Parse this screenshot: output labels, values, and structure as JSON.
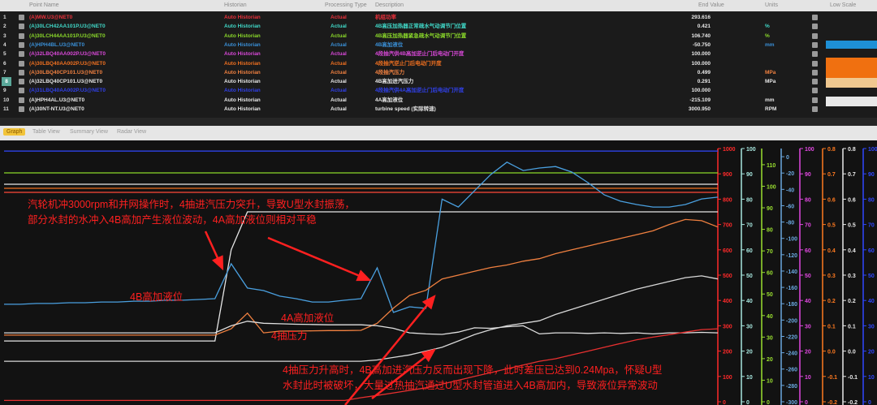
{
  "table": {
    "headers": {
      "point_name": "Point Name",
      "historian": "Historian",
      "processing_type": "Processing Type",
      "description": "Description",
      "end_value": "End Value",
      "units": "Units",
      "low_scale": "Low Scale"
    },
    "rows": [
      {
        "index": "1",
        "name": "(A)MW.U3@NET0",
        "historian": "Auto Historian",
        "type": "Actual",
        "description": "机组功率",
        "end_value": "293.616",
        "units": "",
        "color": "#e8303a"
      },
      {
        "index": "2",
        "name": "(A)30LCH42AA101P.U3@NET0",
        "historian": "Auto Historian",
        "type": "Actual",
        "description": "4B高压加热器正常疏水气动调节门位置",
        "end_value": "0.421",
        "units": "%",
        "color": "#40d8c8"
      },
      {
        "index": "3",
        "name": "(A)30LCH44AA101P.U3@NET0",
        "historian": "Auto Historian",
        "type": "Actual",
        "description": "4B高压加热器紧急疏水气动调节门位置",
        "end_value": "106.740",
        "units": "%",
        "color": "#8ad82a"
      },
      {
        "index": "4",
        "name": "(A)HPH4BL.U3@NET0",
        "historian": "Auto Historian",
        "type": "Actual",
        "description": "4B高加液位",
        "end_value": "-50.750",
        "units": "mm",
        "color": "#3a90d8"
      },
      {
        "index": "5",
        "name": "(A)32LBQ40AA002P.U3@NET0",
        "historian": "Auto Historian",
        "type": "Actual",
        "description": "4段抽汽供4B高加逆止门后电动门开度",
        "end_value": "100.000",
        "units": "",
        "color": "#d848d8"
      },
      {
        "index": "6",
        "name": "(A)30LBQ40AA002P.U3@NET0",
        "historian": "Auto Historian",
        "type": "Actual",
        "description": "4段抽汽逆止门后电动门开度",
        "end_value": "100.000",
        "units": "",
        "color": "#f07020"
      },
      {
        "index": "7",
        "name": "(A)30LBQ40CP101.U3@NET0",
        "historian": "Auto Historian",
        "type": "Actual",
        "description": "4段抽汽压力",
        "end_value": "0.499",
        "units": "MPa",
        "color": "#f08040"
      },
      {
        "index": "8",
        "name": "(A)32LBQ40CP101.U3@NET0",
        "historian": "Auto Historian",
        "type": "Actual",
        "description": "4B高加进汽压力",
        "end_value": "0.291",
        "units": "MPa",
        "color": "#e6e6e6"
      },
      {
        "index": "9",
        "name": "(A)31LBQ40AA002P.U3@NET0",
        "historian": "Auto Historian",
        "type": "Actual",
        "description": "4段抽汽供4A高加逆止门后电动门开度",
        "end_value": "100.000",
        "units": "",
        "color": "#3040e8"
      },
      {
        "index": "10",
        "name": "(A)HPH4AL.U3@NET0",
        "historian": "Auto Historian",
        "type": "Actual",
        "description": "4A高加液位",
        "end_value": "-215.109",
        "units": "mm",
        "color": "#e6e6e6"
      },
      {
        "index": "11",
        "name": "(A)30NT-NT.U3@NET0",
        "historian": "Auto Historian",
        "type": "Actual",
        "description": "turbine speed (实际转速)",
        "end_value": "3000.950",
        "units": "RPM",
        "color": "#e6e6e6"
      }
    ],
    "selected_row": "8",
    "low_scale_colors": {
      "row4": "#1e90d6",
      "row5_6": "#f07010",
      "row7": "#f0c890",
      "row10": "#e8e8e8"
    }
  },
  "tabs": [
    {
      "label": "Graph",
      "active": true
    },
    {
      "label": "Table View",
      "active": false
    },
    {
      "label": "Summary View",
      "active": false
    },
    {
      "label": "Radar View",
      "active": false
    }
  ],
  "annotations": {
    "top_line1": "汽轮机冲3000rpm和并网操作时，4抽进汽压力突升，导致U型水封振荡，",
    "top_line2": "部分水封的水冲入4B高加产生液位波动，4A高加液位则相对平稳",
    "bottom_line1": "4抽压力升高时，4B高加进汽压力反而出现下降，此时差压已达到0.24Mpa，怀疑U型",
    "bottom_line2": "水封此时被破坏，大量过热抽汽通过U型水封管道进入4B高加内，导致液位异常波动",
    "label_4b": "4B高加液位",
    "label_4a": "4A高加液位",
    "label_4p": "4抽压力",
    "color": "#ff2020"
  },
  "chart_data": {
    "type": "line",
    "grid": false,
    "y_reference_axis": "red axis 0–1000",
    "axes": [
      {
        "color": "#ff2a2a",
        "min": 0,
        "max": 1000,
        "step": 100,
        "decimals": 0
      },
      {
        "color": "#a8e8e0",
        "min": 0,
        "max": 100,
        "step": 10,
        "decimals": 0
      },
      {
        "color": "#9ae030",
        "min": 0,
        "max": 117.5,
        "step": 10,
        "decimals": 0
      },
      {
        "color": "#6aa8e0",
        "min": -300,
        "max": 10,
        "step": 20,
        "decimals": 0
      },
      {
        "color": "#e048e0",
        "min": 0,
        "max": 100,
        "step": 10,
        "decimals": 0
      },
      {
        "color": "#ff7a20",
        "min": -0.2,
        "max": 0.8,
        "step": 0.1,
        "decimals": 1
      },
      {
        "color": "#e8e8e8",
        "min": -0.2,
        "max": 0.8,
        "step": 0.1,
        "decimals": 1
      },
      {
        "color": "#3048ff",
        "min": 0,
        "max": 100,
        "step": 10,
        "decimals": 0
      }
    ],
    "series": [
      {
        "color": "#3048ff",
        "values": [
          990,
          990,
          990,
          990,
          990,
          990,
          990,
          990,
          990,
          990,
          990,
          990,
          990,
          990,
          990,
          990,
          990,
          990,
          990,
          990,
          990,
          990,
          990,
          990,
          990,
          990,
          990,
          990,
          990,
          990,
          990,
          990,
          990,
          990,
          990,
          990,
          990,
          990,
          990,
          990,
          990,
          990,
          990,
          990,
          990
        ]
      },
      {
        "color": "#8ad82a",
        "values": [
          904,
          904,
          904,
          904,
          904,
          904,
          904,
          904,
          904,
          904,
          904,
          904,
          904,
          904,
          904,
          904,
          904,
          904,
          904,
          904,
          904,
          904,
          904,
          904,
          904,
          904,
          904,
          904,
          904,
          904,
          904,
          904,
          904,
          904,
          904,
          904,
          904,
          904,
          904,
          904,
          904,
          904,
          904,
          904,
          904
        ]
      },
      {
        "color": "#e8e8e8",
        "values": [
          859,
          859,
          859,
          859,
          859,
          859,
          859,
          859,
          859,
          859,
          859,
          859,
          859,
          859,
          859,
          859,
          859,
          859,
          859,
          859,
          859,
          859,
          859,
          859,
          859,
          859,
          859,
          859,
          859,
          859,
          859,
          859,
          859,
          859,
          859,
          859,
          859,
          859,
          859,
          859,
          859,
          859,
          859,
          859,
          859
        ]
      },
      {
        "color": "#f07020",
        "values": [
          843,
          843,
          843,
          843,
          843,
          843,
          843,
          843,
          843,
          843,
          843,
          843,
          843,
          843,
          843,
          843,
          843,
          843,
          843,
          843,
          843,
          843,
          843,
          843,
          843,
          843,
          843,
          843,
          843,
          843,
          843,
          843,
          843,
          843,
          843,
          843,
          843,
          843,
          843,
          843,
          843,
          843,
          843,
          843,
          843
        ]
      },
      {
        "color": "#ff4a3a",
        "values": [
          827,
          827,
          827,
          827,
          827,
          827,
          827,
          827,
          827,
          827,
          827,
          827,
          827,
          827,
          827,
          827,
          827,
          827,
          827,
          827,
          827,
          827,
          827,
          827,
          827,
          827,
          827,
          827,
          827,
          827,
          827,
          827,
          827,
          827,
          827,
          827,
          827,
          827,
          827,
          827,
          827,
          827,
          827,
          827,
          827
        ]
      },
      {
        "color": "#e6e6e6",
        "values": [
          240,
          240,
          240,
          240,
          240,
          240,
          240,
          240,
          240,
          240,
          240,
          240,
          240,
          240,
          600,
          750,
          750,
          750,
          750,
          750,
          750,
          750,
          750,
          750,
          750,
          750,
          750,
          750,
          750,
          750,
          750,
          750,
          750,
          750,
          750,
          750,
          750,
          750,
          750,
          750,
          750,
          750,
          750,
          750,
          750
        ]
      },
      {
        "color": "#4aa0e0",
        "values": [
          385,
          385,
          388,
          388,
          391,
          391,
          394,
          394,
          397,
          397,
          401,
          401,
          404,
          407,
          545,
          449,
          439,
          417,
          407,
          394,
          394,
          401,
          407,
          529,
          353,
          375,
          369,
          800,
          769,
          833,
          897,
          946,
          913,
          923,
          929,
          907,
          865,
          817,
          792,
          779,
          769,
          769,
          779,
          801,
          808
        ]
      },
      {
        "color": "#f08040",
        "values": [
          263,
          263,
          263,
          263,
          263,
          263,
          263,
          263,
          263,
          263,
          263,
          263,
          263,
          263,
          288,
          350,
          272,
          279,
          279,
          280,
          281,
          281,
          282,
          310,
          370,
          420,
          440,
          485,
          500,
          515,
          530,
          540,
          555,
          565,
          585,
          600,
          615,
          630,
          645,
          660,
          675,
          700,
          720,
          715,
          690
        ]
      },
      {
        "color": "#e0e0e0",
        "values": [
          272,
          272,
          272,
          272,
          272,
          272,
          272,
          272,
          272,
          272,
          272,
          272,
          272,
          272,
          300,
          318,
          310,
          308,
          306,
          305,
          304,
          304,
          304,
          300,
          290,
          272,
          268,
          266,
          275,
          292,
          290,
          296,
          300,
          268,
          272,
          272,
          270,
          272,
          270,
          272,
          268,
          272,
          272,
          274,
          272
        ]
      },
      {
        "color": "#d8d8d8",
        "values": [
          160,
          160,
          160,
          160,
          160,
          160,
          160,
          160,
          160,
          160,
          160,
          160,
          160,
          160,
          160,
          160,
          160,
          160,
          160,
          160,
          160,
          160,
          160,
          165,
          175,
          185,
          200,
          215,
          240,
          265,
          285,
          300,
          310,
          320,
          345,
          365,
          385,
          405,
          425,
          445,
          460,
          475,
          490,
          497,
          485
        ]
      },
      {
        "color": "#e83030",
        "values": [
          5,
          5,
          5,
          5,
          5,
          5,
          5,
          5,
          5,
          5,
          5,
          5,
          5,
          5,
          5,
          5,
          5,
          5,
          5,
          5,
          5,
          5,
          16,
          25,
          35,
          45,
          55,
          70,
          85,
          100,
          115,
          130,
          145,
          160,
          170,
          185,
          200,
          215,
          230,
          245,
          255,
          265,
          275,
          285,
          288
        ]
      }
    ]
  }
}
